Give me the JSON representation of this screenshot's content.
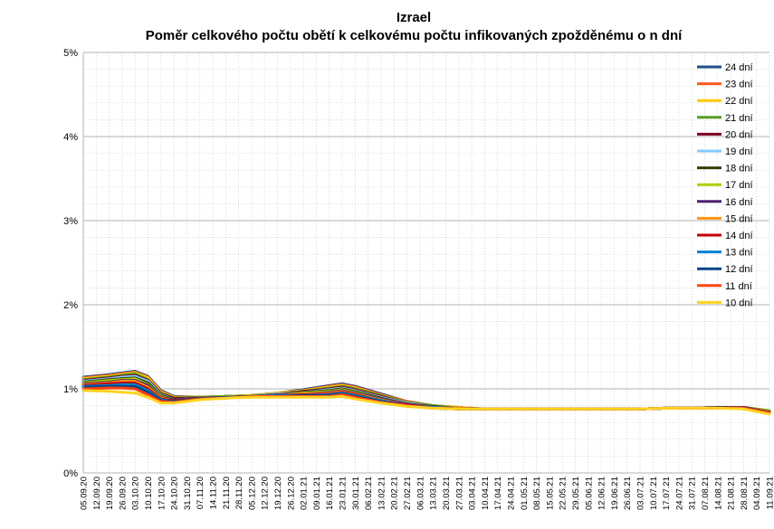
{
  "chart_data": {
    "type": "line",
    "title": "Izrael",
    "subtitle": "Poměr celkového počtu obětí k celkovému počtu infikovaných zpožděnému o n dní",
    "xlabel": "",
    "ylabel": "",
    "ylim": [
      0,
      5
    ],
    "y_unit": "%",
    "y_ticks": [
      "0%",
      "1%",
      "2%",
      "3%",
      "4%",
      "5%"
    ],
    "grid": true,
    "legend_position": "top-right",
    "x_ticks": [
      "05.09.20",
      "12.09.20",
      "19.09.20",
      "26.09.20",
      "03.10.20",
      "10.10.20",
      "17.10.20",
      "24.10.20",
      "31.10.20",
      "07.11.20",
      "14.11.20",
      "21.11.20",
      "28.11.20",
      "05.12.20",
      "12.12.20",
      "19.12.20",
      "26.12.20",
      "02.01.21",
      "09.01.21",
      "16.01.21",
      "23.01.21",
      "30.01.21",
      "06.02.21",
      "13.02.21",
      "20.02.21",
      "27.02.21",
      "06.03.21",
      "13.03.21",
      "20.03.21",
      "27.03.21",
      "03.04.21",
      "10.04.21",
      "17.04.21",
      "24.04.21",
      "01.05.21",
      "08.05.21",
      "15.05.21",
      "22.05.21",
      "29.05.21",
      "05.06.21",
      "12.06.21",
      "19.06.21",
      "26.06.21",
      "03.07.21",
      "10.07.21",
      "17.07.21",
      "24.07.21",
      "31.07.21",
      "07.08.21",
      "14.08.21",
      "21.08.21",
      "28.08.21",
      "04.09.21",
      "11.09.21"
    ],
    "key_x": [
      "05.09.20",
      "19.09.20",
      "26.09.20",
      "03.10.20",
      "10.10.20",
      "17.10.20",
      "24.10.20",
      "07.11.20",
      "21.11.20",
      "05.12.20",
      "19.12.20",
      "02.01.21",
      "16.01.21",
      "23.01.21",
      "30.01.21",
      "13.02.21",
      "27.02.21",
      "13.03.21",
      "27.03.21",
      "10.04.21",
      "24.04.21",
      "08.05.21",
      "22.05.21",
      "05.06.21",
      "19.06.21",
      "03.07.21",
      "17.07.21",
      "31.07.21",
      "14.08.21",
      "28.08.21",
      "11.09.21"
    ],
    "series": [
      {
        "name": "24 dní",
        "color": "#1f4e8c",
        "values": [
          1.14,
          1.17,
          1.19,
          1.21,
          1.15,
          0.98,
          0.91,
          0.9,
          0.91,
          0.92,
          0.95,
          0.99,
          1.04,
          1.06,
          1.03,
          0.94,
          0.85,
          0.8,
          0.78,
          0.76,
          0.76,
          0.76,
          0.76,
          0.76,
          0.76,
          0.76,
          0.77,
          0.77,
          0.78,
          0.78,
          0.74
        ]
      },
      {
        "name": "23 dní",
        "color": "#ff5a1f",
        "values": [
          1.13,
          1.16,
          1.18,
          1.2,
          1.14,
          0.97,
          0.9,
          0.9,
          0.91,
          0.92,
          0.95,
          0.98,
          1.03,
          1.05,
          1.02,
          0.93,
          0.85,
          0.8,
          0.78,
          0.76,
          0.76,
          0.76,
          0.76,
          0.76,
          0.76,
          0.76,
          0.77,
          0.77,
          0.78,
          0.78,
          0.74
        ]
      },
      {
        "name": "22 dní",
        "color": "#ffcc00",
        "values": [
          1.12,
          1.15,
          1.17,
          1.19,
          1.13,
          0.96,
          0.9,
          0.9,
          0.91,
          0.92,
          0.95,
          0.98,
          1.02,
          1.04,
          1.01,
          0.92,
          0.84,
          0.8,
          0.78,
          0.76,
          0.76,
          0.76,
          0.76,
          0.76,
          0.76,
          0.76,
          0.77,
          0.77,
          0.78,
          0.78,
          0.74
        ]
      },
      {
        "name": "21 dní",
        "color": "#579d1c",
        "values": [
          1.11,
          1.14,
          1.16,
          1.18,
          1.11,
          0.95,
          0.89,
          0.9,
          0.91,
          0.92,
          0.94,
          0.97,
          1.01,
          1.03,
          1.0,
          0.92,
          0.84,
          0.8,
          0.77,
          0.76,
          0.76,
          0.76,
          0.76,
          0.76,
          0.76,
          0.76,
          0.77,
          0.77,
          0.78,
          0.78,
          0.74
        ]
      },
      {
        "name": "20 dní",
        "color": "#7e0021",
        "values": [
          1.1,
          1.13,
          1.15,
          1.16,
          1.1,
          0.94,
          0.89,
          0.89,
          0.91,
          0.92,
          0.94,
          0.97,
          1.0,
          1.02,
          0.99,
          0.91,
          0.83,
          0.79,
          0.77,
          0.76,
          0.76,
          0.76,
          0.76,
          0.76,
          0.76,
          0.76,
          0.77,
          0.77,
          0.78,
          0.78,
          0.73
        ]
      },
      {
        "name": "19 dní",
        "color": "#83caff",
        "values": [
          1.09,
          1.12,
          1.14,
          1.15,
          1.09,
          0.93,
          0.88,
          0.89,
          0.91,
          0.92,
          0.94,
          0.96,
          0.99,
          1.01,
          0.98,
          0.9,
          0.83,
          0.79,
          0.77,
          0.76,
          0.76,
          0.76,
          0.76,
          0.76,
          0.76,
          0.76,
          0.77,
          0.77,
          0.78,
          0.78,
          0.73
        ]
      },
      {
        "name": "18 dní",
        "color": "#314004",
        "values": [
          1.08,
          1.11,
          1.12,
          1.13,
          1.07,
          0.92,
          0.88,
          0.89,
          0.91,
          0.92,
          0.93,
          0.96,
          0.98,
          1.0,
          0.97,
          0.89,
          0.82,
          0.79,
          0.77,
          0.76,
          0.76,
          0.76,
          0.76,
          0.76,
          0.76,
          0.76,
          0.77,
          0.77,
          0.78,
          0.78,
          0.73
        ]
      },
      {
        "name": "17 dní",
        "color": "#aecf00",
        "values": [
          1.07,
          1.1,
          1.11,
          1.12,
          1.05,
          0.91,
          0.87,
          0.89,
          0.91,
          0.92,
          0.93,
          0.95,
          0.97,
          0.99,
          0.96,
          0.88,
          0.82,
          0.78,
          0.77,
          0.76,
          0.76,
          0.76,
          0.76,
          0.76,
          0.76,
          0.76,
          0.77,
          0.77,
          0.77,
          0.78,
          0.73
        ]
      },
      {
        "name": "16 dní",
        "color": "#4b1f6f",
        "values": [
          1.06,
          1.08,
          1.1,
          1.1,
          1.04,
          0.9,
          0.87,
          0.89,
          0.9,
          0.91,
          0.93,
          0.94,
          0.96,
          0.98,
          0.95,
          0.88,
          0.82,
          0.78,
          0.77,
          0.76,
          0.76,
          0.76,
          0.76,
          0.76,
          0.76,
          0.76,
          0.77,
          0.77,
          0.77,
          0.78,
          0.72
        ]
      },
      {
        "name": "15 dní",
        "color": "#ff950e",
        "values": [
          1.05,
          1.07,
          1.09,
          1.09,
          1.02,
          0.89,
          0.86,
          0.88,
          0.9,
          0.91,
          0.92,
          0.94,
          0.95,
          0.97,
          0.94,
          0.87,
          0.81,
          0.78,
          0.77,
          0.76,
          0.76,
          0.76,
          0.76,
          0.76,
          0.76,
          0.76,
          0.77,
          0.77,
          0.77,
          0.77,
          0.72
        ]
      },
      {
        "name": "14 dní",
        "color": "#c5000b",
        "values": [
          1.04,
          1.06,
          1.07,
          1.07,
          1.0,
          0.88,
          0.86,
          0.88,
          0.9,
          0.91,
          0.92,
          0.93,
          0.94,
          0.96,
          0.93,
          0.86,
          0.81,
          0.78,
          0.76,
          0.76,
          0.76,
          0.76,
          0.76,
          0.76,
          0.76,
          0.76,
          0.77,
          0.77,
          0.77,
          0.77,
          0.72
        ]
      },
      {
        "name": "13 dní",
        "color": "#0084d1",
        "values": [
          1.03,
          1.04,
          1.05,
          1.05,
          0.98,
          0.87,
          0.85,
          0.88,
          0.9,
          0.91,
          0.92,
          0.92,
          0.93,
          0.95,
          0.92,
          0.86,
          0.8,
          0.78,
          0.76,
          0.76,
          0.76,
          0.76,
          0.76,
          0.76,
          0.76,
          0.76,
          0.77,
          0.77,
          0.77,
          0.77,
          0.71
        ]
      },
      {
        "name": "12 dní",
        "color": "#004586",
        "values": [
          1.02,
          1.03,
          1.03,
          1.03,
          0.96,
          0.86,
          0.85,
          0.88,
          0.9,
          0.91,
          0.91,
          0.92,
          0.92,
          0.94,
          0.91,
          0.85,
          0.8,
          0.77,
          0.76,
          0.76,
          0.76,
          0.76,
          0.76,
          0.76,
          0.76,
          0.76,
          0.77,
          0.77,
          0.77,
          0.77,
          0.71
        ]
      },
      {
        "name": "11 dní",
        "color": "#ff420e",
        "values": [
          1.0,
          1.01,
          1.01,
          1.0,
          0.93,
          0.85,
          0.84,
          0.88,
          0.89,
          0.91,
          0.91,
          0.91,
          0.91,
          0.93,
          0.9,
          0.84,
          0.8,
          0.77,
          0.76,
          0.76,
          0.76,
          0.76,
          0.76,
          0.76,
          0.76,
          0.76,
          0.77,
          0.77,
          0.77,
          0.77,
          0.71
        ]
      },
      {
        "name": "10 dní",
        "color": "#ffd320",
        "values": [
          0.98,
          0.97,
          0.96,
          0.95,
          0.9,
          0.83,
          0.83,
          0.87,
          0.89,
          0.9,
          0.9,
          0.9,
          0.9,
          0.91,
          0.88,
          0.83,
          0.79,
          0.77,
          0.76,
          0.76,
          0.76,
          0.76,
          0.76,
          0.76,
          0.76,
          0.76,
          0.77,
          0.77,
          0.77,
          0.76,
          0.7
        ]
      }
    ]
  }
}
